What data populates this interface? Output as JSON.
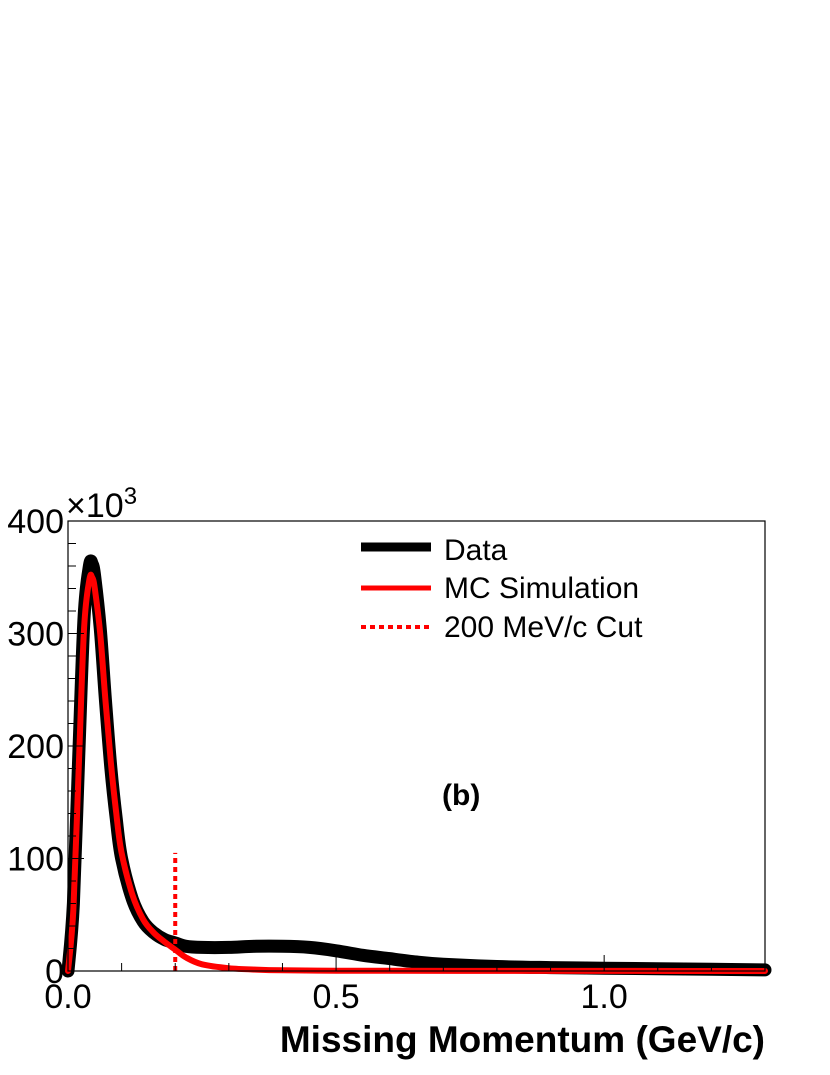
{
  "chart_data": {
    "type": "line",
    "title": "",
    "xlabel": "Missing Momentum (GeV/c)",
    "ylabel": "",
    "y_multiplier_label": "×10",
    "y_multiplier_exponent": "3",
    "xlim": [
      0.0,
      1.3
    ],
    "ylim": [
      0,
      400
    ],
    "x_ticks": [
      {
        "value": 0.0,
        "label": "0.0"
      },
      {
        "value": 0.5,
        "label": "0.5"
      },
      {
        "value": 1.0,
        "label": "1.0"
      }
    ],
    "y_ticks": [
      {
        "value": 0,
        "label": "0"
      },
      {
        "value": 100,
        "label": "100"
      },
      {
        "value": 200,
        "label": "200"
      },
      {
        "value": 300,
        "label": "300"
      },
      {
        "value": 400,
        "label": "400"
      }
    ],
    "annotation": "(b)",
    "legend_position": "top-right",
    "series": [
      {
        "name": "Data",
        "color": "#000000",
        "style": "thick-solid",
        "x": [
          0.0,
          0.01,
          0.02,
          0.03,
          0.04,
          0.045,
          0.05,
          0.06,
          0.07,
          0.08,
          0.09,
          0.1,
          0.12,
          0.14,
          0.16,
          0.18,
          0.2,
          0.22,
          0.25,
          0.3,
          0.35,
          0.4,
          0.45,
          0.5,
          0.55,
          0.6,
          0.65,
          0.7,
          0.8,
          0.9,
          1.0,
          1.1,
          1.2,
          1.3
        ],
        "y": [
          0,
          60,
          190,
          315,
          360,
          362,
          350,
          305,
          240,
          180,
          135,
          100,
          64,
          44,
          34,
          28,
          25,
          22,
          21,
          21,
          22,
          22,
          21,
          18,
          14,
          11,
          8,
          6,
          4,
          3,
          2.5,
          2,
          1.5,
          1
        ]
      },
      {
        "name": "MC Simulation",
        "color": "#ff0000",
        "style": "solid",
        "x": [
          0.0,
          0.01,
          0.02,
          0.03,
          0.04,
          0.045,
          0.05,
          0.06,
          0.07,
          0.08,
          0.09,
          0.1,
          0.12,
          0.14,
          0.16,
          0.18,
          0.2,
          0.22,
          0.25,
          0.3,
          0.35,
          0.4,
          0.5,
          0.6,
          0.8,
          1.0,
          1.3
        ],
        "y": [
          0,
          55,
          180,
          305,
          348,
          350,
          340,
          300,
          240,
          185,
          140,
          105,
          68,
          46,
          34,
          26,
          19,
          12,
          6,
          2.5,
          1.2,
          0.6,
          0.3,
          0.2,
          0.1,
          0.05,
          0
        ]
      }
    ],
    "cut": {
      "name": "200 MeV/c Cut",
      "color": "#ff0000",
      "style": "dotted",
      "x": 0.2,
      "y_top": 105
    }
  }
}
